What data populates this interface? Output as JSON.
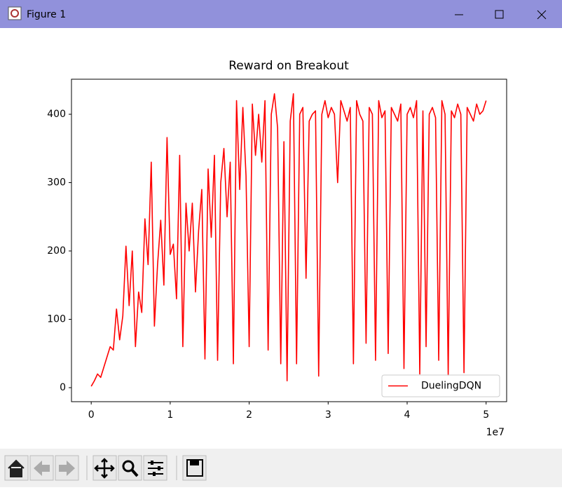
{
  "window": {
    "title": "Figure 1"
  },
  "chart_data": {
    "type": "line",
    "title": "Reward on Breakout",
    "x_offset_label": "1e7",
    "x": [
      0,
      0.04,
      0.08,
      0.12,
      0.16,
      0.2,
      0.24,
      0.28,
      0.32,
      0.36,
      0.4,
      0.44,
      0.48,
      0.52,
      0.56,
      0.6,
      0.64,
      0.68,
      0.72,
      0.76,
      0.8,
      0.84,
      0.88,
      0.92,
      0.96,
      1.0,
      1.04,
      1.08,
      1.12,
      1.16,
      1.2,
      1.24,
      1.28,
      1.32,
      1.36,
      1.4,
      1.44,
      1.48,
      1.52,
      1.56,
      1.6,
      1.64,
      1.68,
      1.72,
      1.76,
      1.8,
      1.84,
      1.88,
      1.92,
      1.96,
      2.0,
      2.04,
      2.08,
      2.12,
      2.16,
      2.2,
      2.24,
      2.28,
      2.32,
      2.36,
      2.4,
      2.44,
      2.48,
      2.52,
      2.56,
      2.6,
      2.64,
      2.68,
      2.72,
      2.76,
      2.8,
      2.84,
      2.88,
      2.92,
      2.96,
      3.0,
      3.04,
      3.08,
      3.12,
      3.16,
      3.2,
      3.24,
      3.28,
      3.32,
      3.36,
      3.4,
      3.44,
      3.48,
      3.52,
      3.56,
      3.6,
      3.64,
      3.68,
      3.72,
      3.76,
      3.8,
      3.84,
      3.88,
      3.92,
      3.96,
      4.0,
      4.04,
      4.08,
      4.12,
      4.16,
      4.2,
      4.24,
      4.28,
      4.32,
      4.36,
      4.4,
      4.44,
      4.48,
      4.52,
      4.56,
      4.6,
      4.64,
      4.68,
      4.72,
      4.76,
      4.8,
      4.84,
      4.88,
      4.92,
      4.96,
      5.0
    ],
    "series": [
      {
        "name": "DuelingDQN",
        "color": "#ff0000",
        "values": [
          2,
          10,
          20,
          15,
          30,
          45,
          60,
          55,
          115,
          70,
          105,
          207,
          120,
          200,
          60,
          140,
          110,
          247,
          180,
          330,
          90,
          180,
          245,
          150,
          366,
          195,
          210,
          130,
          340,
          60,
          270,
          200,
          270,
          140,
          230,
          290,
          42,
          320,
          220,
          340,
          40,
          300,
          350,
          250,
          330,
          35,
          420,
          290,
          410,
          310,
          60,
          415,
          340,
          400,
          330,
          420,
          55,
          400,
          430,
          380,
          35,
          360,
          10,
          390,
          430,
          35,
          400,
          410,
          160,
          390,
          400,
          405,
          17,
          400,
          420,
          395,
          410,
          400,
          300,
          420,
          405,
          390,
          410,
          35,
          420,
          400,
          390,
          65,
          410,
          400,
          40,
          420,
          395,
          405,
          50,
          410,
          400,
          390,
          415,
          28,
          400,
          410,
          395,
          420,
          20,
          405,
          60,
          400,
          410,
          395,
          40,
          420,
          400,
          18,
          405,
          395,
          415,
          400,
          22,
          410,
          400,
          390,
          415,
          400,
          405,
          420
        ]
      }
    ],
    "xlim": [
      -0.25,
      5.26
    ],
    "ylim": [
      -20.5,
      451.3
    ],
    "xticks": [
      0,
      1,
      2,
      3,
      4,
      5
    ],
    "yticks": [
      0,
      100,
      200,
      300,
      400
    ],
    "grid": false,
    "legend": "lower right"
  }
}
